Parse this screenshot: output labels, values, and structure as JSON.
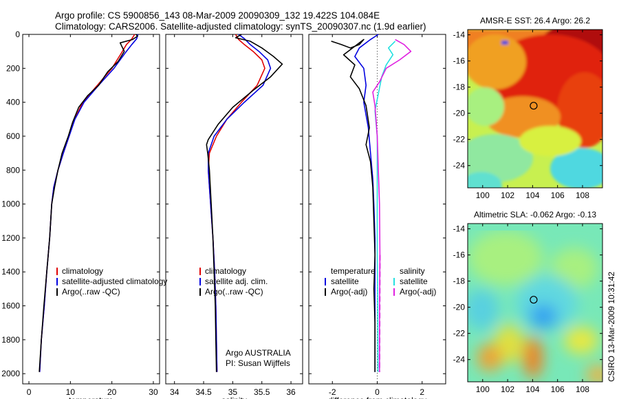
{
  "header": {
    "line1": "Argo profile: CS 5900856_143 08-Mar-2009 20090309_132 19.422S 104.084E",
    "line2": "Climatology: CARS2006. Satellite-adjusted climatology: synTS_20090307.nc (1.9d earlier)"
  },
  "side_label": "CSIRO 13-Mar-2009 10:31:42",
  "colors": {
    "climatology": "#e00000",
    "satellite": "#0000e0",
    "argo": "#000000",
    "sat_diff": "#22e0e0",
    "argo_adj": "#e020e0"
  },
  "chart_data": [
    {
      "id": "temperature",
      "type": "line",
      "xlabel": "temperature",
      "xlim": [
        -1.5,
        31.5
      ],
      "ylim": [
        2060,
        0
      ],
      "xticks": [
        "0",
        "10",
        "20",
        "30"
      ],
      "yticks": [
        "0",
        "200",
        "400",
        "600",
        "800",
        "1000",
        "1200",
        "1400",
        "1600",
        "1800",
        "2000"
      ],
      "legend": [
        "climatology",
        "satellite-adjusted climatology",
        "Argo(..raw -QC)"
      ],
      "series": [
        {
          "name": "climatology",
          "color": "#e00000",
          "points": [
            [
              25.5,
              0
            ],
            [
              24.7,
              30
            ],
            [
              23.5,
              60
            ],
            [
              22.3,
              110
            ],
            [
              20,
              200
            ],
            [
              16.5,
              300
            ],
            [
              13,
              400
            ],
            [
              11,
              500
            ],
            [
              9.7,
              600
            ],
            [
              8.3,
              700
            ],
            [
              7,
              800
            ],
            [
              6,
              900
            ],
            [
              5.5,
              1000
            ],
            [
              5,
              1200
            ],
            [
              4.3,
              1400
            ],
            [
              3.7,
              1600
            ],
            [
              3,
              1800
            ],
            [
              2.6,
              1990
            ]
          ]
        },
        {
          "name": "satellite-adjusted climatology",
          "color": "#0000e0",
          "points": [
            [
              26.3,
              0
            ],
            [
              26,
              25
            ],
            [
              24.8,
              60
            ],
            [
              23.2,
              110
            ],
            [
              20.5,
              200
            ],
            [
              16.8,
              300
            ],
            [
              13.3,
              400
            ],
            [
              11.1,
              500
            ],
            [
              9.7,
              600
            ],
            [
              8.3,
              700
            ],
            [
              7,
              800
            ],
            [
              6,
              900
            ],
            [
              5.5,
              1000
            ],
            [
              5,
              1200
            ],
            [
              4.3,
              1400
            ],
            [
              3.7,
              1600
            ],
            [
              3,
              1800
            ],
            [
              2.6,
              1990
            ]
          ]
        },
        {
          "name": "Argo(..raw -QC)",
          "color": "#000000",
          "points": [
            [
              25.8,
              0
            ],
            [
              26.2,
              10
            ],
            [
              25,
              30
            ],
            [
              22,
              50
            ],
            [
              23,
              100
            ],
            [
              21.5,
              160
            ],
            [
              19,
              220
            ],
            [
              16.8,
              300
            ],
            [
              14.2,
              360
            ],
            [
              12,
              430
            ],
            [
              10.5,
              520
            ],
            [
              9.5,
              600
            ],
            [
              8,
              700
            ],
            [
              7,
              800
            ],
            [
              6.2,
              900
            ],
            [
              5.5,
              1000
            ],
            [
              5,
              1200
            ],
            [
              4.3,
              1400
            ],
            [
              3.6,
              1600
            ],
            [
              3,
              1800
            ],
            [
              2.5,
              1990
            ]
          ]
        }
      ]
    },
    {
      "id": "salinity",
      "type": "line",
      "xlabel": "salinity",
      "xlim": [
        33.85,
        36.2
      ],
      "ylim": [
        2060,
        0
      ],
      "xticks": [
        "34",
        "34.5",
        "35",
        "35.5",
        "36"
      ],
      "legend": [
        "climatology",
        "satellite adj. clim.",
        "Argo(..raw -QC)"
      ],
      "annotations": [
        "Argo AUSTRALIA",
        "PI: Susan Wijffels"
      ],
      "series": [
        {
          "name": "climatology",
          "color": "#e00000",
          "points": [
            [
              35.05,
              0
            ],
            [
              35.1,
              30
            ],
            [
              35.2,
              60
            ],
            [
              35.35,
              100
            ],
            [
              35.5,
              150
            ],
            [
              35.55,
              200
            ],
            [
              35.42,
              300
            ],
            [
              35.15,
              400
            ],
            [
              34.9,
              500
            ],
            [
              34.72,
              600
            ],
            [
              34.6,
              700
            ],
            [
              34.58,
              800
            ],
            [
              34.62,
              1000
            ],
            [
              34.66,
              1200
            ],
            [
              34.69,
              1400
            ],
            [
              34.71,
              1600
            ],
            [
              34.72,
              1800
            ],
            [
              34.73,
              1990
            ]
          ]
        },
        {
          "name": "satellite adj. clim.",
          "color": "#0000e0",
          "points": [
            [
              35.1,
              0
            ],
            [
              35.2,
              25
            ],
            [
              35.3,
              60
            ],
            [
              35.45,
              100
            ],
            [
              35.6,
              150
            ],
            [
              35.65,
              200
            ],
            [
              35.52,
              300
            ],
            [
              35.2,
              400
            ],
            [
              34.9,
              500
            ],
            [
              34.68,
              600
            ],
            [
              34.58,
              700
            ],
            [
              34.58,
              800
            ],
            [
              34.62,
              1000
            ],
            [
              34.66,
              1200
            ],
            [
              34.69,
              1400
            ],
            [
              34.71,
              1600
            ],
            [
              34.72,
              1800
            ],
            [
              34.73,
              1990
            ]
          ]
        },
        {
          "name": "Argo(..raw -QC)",
          "color": "#000000",
          "points": [
            [
              35.15,
              0
            ],
            [
              35.05,
              20
            ],
            [
              35.3,
              40
            ],
            [
              35.5,
              80
            ],
            [
              35.7,
              130
            ],
            [
              35.85,
              175
            ],
            [
              35.65,
              250
            ],
            [
              35.35,
              330
            ],
            [
              35,
              430
            ],
            [
              34.75,
              530
            ],
            [
              34.58,
              620
            ],
            [
              34.55,
              650
            ],
            [
              34.57,
              700
            ],
            [
              34.6,
              800
            ],
            [
              34.63,
              1000
            ],
            [
              34.66,
              1200
            ],
            [
              34.68,
              1400
            ],
            [
              34.7,
              1600
            ],
            [
              34.71,
              1800
            ],
            [
              34.72,
              1990
            ]
          ]
        }
      ]
    },
    {
      "id": "difference",
      "type": "line",
      "xlabel": "difference from climatology",
      "xlim": [
        -3.05,
        3.05
      ],
      "ylim": [
        2060,
        0
      ],
      "xticks": [
        "-2",
        "0",
        "2"
      ],
      "legend_left": {
        "header": "temperature",
        "items": [
          "satellite",
          "Argo(-adj)"
        ]
      },
      "legend_right": {
        "header": "salinity",
        "items": [
          "satellite",
          "Argo(-adj)"
        ]
      },
      "series": [
        {
          "name": "temperature satellite",
          "color": "#0000e0",
          "points": [
            [
              0.05,
              0
            ],
            [
              -0.3,
              30
            ],
            [
              -0.8,
              80
            ],
            [
              -1,
              130
            ],
            [
              -0.6,
              200
            ],
            [
              -0.5,
              300
            ],
            [
              -0.6,
              400
            ],
            [
              -0.4,
              550
            ],
            [
              -0.3,
              700
            ],
            [
              -0.2,
              850
            ],
            [
              -0.15,
              1000
            ],
            [
              -0.1,
              1200
            ],
            [
              -0.1,
              1500
            ],
            [
              -0.1,
              1800
            ],
            [
              -0.1,
              1990
            ]
          ]
        },
        {
          "name": "temperature Argo(-adj)",
          "color": "#000000",
          "points": [
            [
              -2.05,
              40
            ],
            [
              -1.6,
              60
            ],
            [
              -1.2,
              80
            ],
            [
              -0.8,
              60
            ],
            [
              -0.6,
              30
            ],
            [
              -1.5,
              120
            ],
            [
              -1,
              180
            ],
            [
              -1.2,
              250
            ],
            [
              -0.8,
              320
            ],
            [
              -0.5,
              420
            ],
            [
              -0.35,
              550
            ],
            [
              -0.5,
              650
            ],
            [
              -0.3,
              750
            ],
            [
              -0.2,
              900
            ],
            [
              -0.15,
              1100
            ],
            [
              -0.1,
              1300
            ],
            [
              -0.15,
              1500
            ],
            [
              -0.1,
              1700
            ],
            [
              -0.1,
              1990
            ]
          ]
        },
        {
          "name": "salinity satellite",
          "color": "#22e0e0",
          "points": [
            [
              0.8,
              40
            ],
            [
              0.5,
              80
            ],
            [
              0.7,
              120
            ],
            [
              0.4,
              180
            ],
            [
              0.2,
              250
            ],
            [
              0.05,
              350
            ],
            [
              -0.1,
              450
            ],
            [
              0,
              600
            ],
            [
              0,
              800
            ],
            [
              0,
              1000
            ],
            [
              0,
              1300
            ],
            [
              0.02,
              1600
            ],
            [
              0.03,
              1990
            ]
          ]
        },
        {
          "name": "salinity Argo(-adj)",
          "color": "#e020e0",
          "points": [
            [
              0.8,
              30
            ],
            [
              1.2,
              60
            ],
            [
              1.5,
              100
            ],
            [
              1,
              150
            ],
            [
              0.4,
              200
            ],
            [
              0.1,
              280
            ],
            [
              -0.2,
              340
            ],
            [
              -0.1,
              420
            ],
            [
              0,
              600
            ],
            [
              0.05,
              800
            ],
            [
              0.1,
              1000
            ],
            [
              0.12,
              1300
            ],
            [
              0.1,
              1600
            ],
            [
              0.1,
              1990
            ]
          ]
        }
      ]
    }
  ],
  "maps": [
    {
      "title": "AMSR-E SST: 26.4 Argo: 26.2",
      "xticks": [
        "100",
        "102",
        "104",
        "106",
        "108"
      ],
      "yticks": [
        "-14",
        "-16",
        "-18",
        "-20",
        "-22",
        "-24"
      ],
      "xlim": [
        98.8,
        109.6
      ],
      "ylim": [
        -25.7,
        -13.6
      ],
      "argo_position": [
        104.084,
        -19.422
      ]
    },
    {
      "title": "Altimetric SLA: -0.062 Argo: -0.13",
      "xticks": [
        "100",
        "102",
        "104",
        "106",
        "108"
      ],
      "yticks": [
        "-14",
        "-16",
        "-18",
        "-20",
        "-22",
        "-24"
      ],
      "xlim": [
        98.8,
        109.6
      ],
      "ylim": [
        -25.7,
        -13.6
      ],
      "argo_position": [
        104.084,
        -19.422
      ]
    }
  ]
}
